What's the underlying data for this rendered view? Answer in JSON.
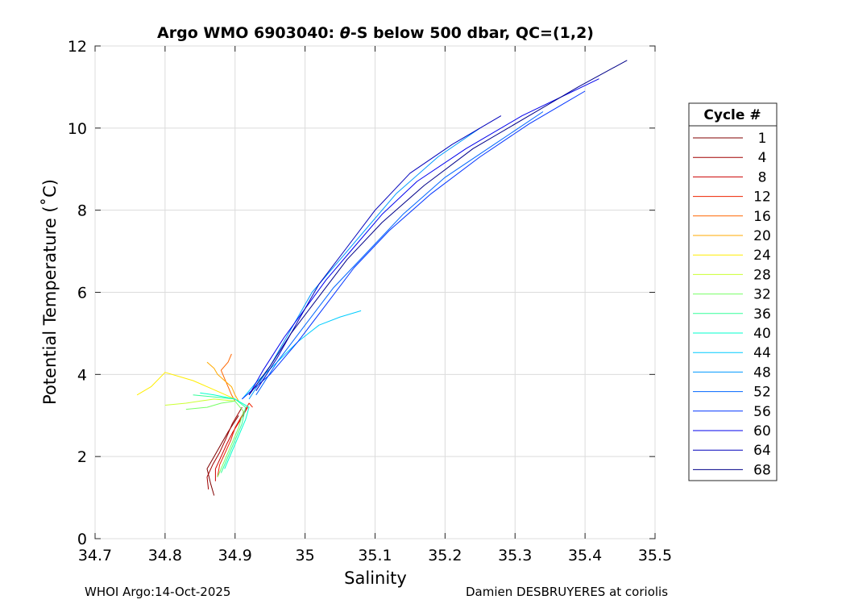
{
  "chart_data": {
    "type": "line",
    "title_main": "Argo WMO 6903040: ",
    "title_theta": "θ",
    "title_rest": "-S below 500 dbar,  QC=(1,2)",
    "xlabel": "Salinity",
    "ylabel": "Potential Temperature (˚C)",
    "xlim": [
      34.7,
      35.5
    ],
    "ylim": [
      0,
      12
    ],
    "xticks": [
      "34.7",
      "34.8",
      "34.9",
      "35",
      "35.1",
      "35.2",
      "35.3",
      "35.4",
      "35.5"
    ],
    "yticks": [
      "0",
      "2",
      "4",
      "6",
      "8",
      "10",
      "12"
    ],
    "grid": true,
    "legend": {
      "title": "Cycle #",
      "placement": "right",
      "entries": [
        {
          "label": "1",
          "color": "#800000"
        },
        {
          "label": "4",
          "color": "#a00000"
        },
        {
          "label": "8",
          "color": "#cc0000"
        },
        {
          "label": "12",
          "color": "#ee2200"
        },
        {
          "label": "16",
          "color": "#ff6600"
        },
        {
          "label": "20",
          "color": "#ffaa00"
        },
        {
          "label": "24",
          "color": "#ffee00"
        },
        {
          "label": "28",
          "color": "#ccff33"
        },
        {
          "label": "32",
          "color": "#77ff66"
        },
        {
          "label": "36",
          "color": "#33ff99"
        },
        {
          "label": "40",
          "color": "#00ffcc"
        },
        {
          "label": "44",
          "color": "#00ccff"
        },
        {
          "label": "48",
          "color": "#0099ff"
        },
        {
          "label": "52",
          "color": "#0066ff"
        },
        {
          "label": "56",
          "color": "#0033ff"
        },
        {
          "label": "60",
          "color": "#0000ee"
        },
        {
          "label": "64",
          "color": "#0000bb"
        },
        {
          "label": "68",
          "color": "#000088"
        }
      ]
    },
    "series": [
      {
        "color": "#800000",
        "x": [
          34.87,
          34.865,
          34.86,
          34.87,
          34.88,
          34.89,
          34.905
        ],
        "y": [
          1.05,
          1.35,
          1.7,
          2.0,
          2.3,
          2.6,
          3.0
        ]
      },
      {
        "color": "#a00000",
        "x": [
          34.862,
          34.86,
          34.868,
          34.878,
          34.886,
          34.896,
          34.91
        ],
        "y": [
          1.2,
          1.5,
          1.8,
          2.1,
          2.4,
          2.8,
          3.2
        ]
      },
      {
        "color": "#cc0000",
        "x": [
          34.872,
          34.872,
          34.88,
          34.888,
          34.897,
          34.908,
          34.918
        ],
        "y": [
          1.4,
          1.7,
          2.0,
          2.3,
          2.6,
          2.9,
          3.2
        ]
      },
      {
        "color": "#ee2200",
        "x": [
          34.875,
          34.878,
          34.886,
          34.894,
          34.9,
          34.91,
          34.92,
          34.925
        ],
        "y": [
          1.5,
          1.8,
          2.1,
          2.4,
          2.7,
          3.0,
          3.3,
          3.2
        ]
      },
      {
        "color": "#ff6600",
        "x": [
          34.9,
          34.895,
          34.89,
          34.885,
          34.88,
          34.89,
          34.895
        ],
        "y": [
          3.35,
          3.5,
          3.7,
          3.9,
          4.1,
          4.3,
          4.5
        ]
      },
      {
        "color": "#ffaa00",
        "x": [
          34.905,
          34.9,
          34.895,
          34.885,
          34.875,
          34.87,
          34.86
        ],
        "y": [
          3.35,
          3.5,
          3.7,
          3.85,
          4.0,
          4.15,
          4.3
        ]
      },
      {
        "color": "#ffee00",
        "x": [
          34.9,
          34.88,
          34.86,
          34.84,
          34.82,
          34.8,
          34.78,
          34.76
        ],
        "y": [
          3.4,
          3.55,
          3.7,
          3.85,
          3.95,
          4.05,
          3.7,
          3.5
        ]
      },
      {
        "color": "#ccff33",
        "x": [
          34.9,
          34.87,
          34.85,
          34.83,
          34.8
        ],
        "y": [
          3.35,
          3.4,
          3.35,
          3.3,
          3.25
        ]
      },
      {
        "color": "#77ff66",
        "x": [
          34.875,
          34.885,
          34.895,
          34.905,
          34.912,
          34.9,
          34.88,
          34.86,
          34.83
        ],
        "y": [
          1.5,
          1.9,
          2.3,
          2.7,
          3.1,
          3.35,
          3.3,
          3.2,
          3.15
        ]
      },
      {
        "color": "#33ff99",
        "x": [
          34.88,
          34.89,
          34.9,
          34.91,
          34.915,
          34.9,
          34.87,
          34.84
        ],
        "y": [
          1.6,
          2.0,
          2.4,
          2.8,
          3.2,
          3.4,
          3.45,
          3.5
        ]
      },
      {
        "color": "#00ffcc",
        "x": [
          34.885,
          34.895,
          34.905,
          34.915,
          34.92,
          34.9,
          34.87,
          34.85
        ],
        "y": [
          1.7,
          2.1,
          2.5,
          2.9,
          3.2,
          3.4,
          3.5,
          3.55
        ]
      },
      {
        "color": "#00ccff",
        "x": [
          34.91,
          34.93,
          34.96,
          34.99,
          35.02,
          35.05,
          35.08
        ],
        "y": [
          3.4,
          3.8,
          4.3,
          4.8,
          5.2,
          5.4,
          5.55
        ]
      },
      {
        "color": "#0099ff",
        "x": [
          34.92,
          34.95,
          34.98,
          35.01,
          35.05,
          35.09,
          35.13,
          35.19,
          35.25
        ],
        "y": [
          3.4,
          4.2,
          5.1,
          6.0,
          6.8,
          7.6,
          8.4,
          9.3,
          10.0
        ]
      },
      {
        "color": "#0066ff",
        "x": [
          34.93,
          34.96,
          35.0,
          35.04,
          35.09,
          35.14,
          35.2,
          35.27,
          35.34
        ],
        "y": [
          3.5,
          4.3,
          5.2,
          6.1,
          7.0,
          7.9,
          8.8,
          9.6,
          10.4
        ]
      },
      {
        "color": "#0033ff",
        "x": [
          34.91,
          34.95,
          34.99,
          35.03,
          35.07,
          35.12,
          35.18,
          35.25,
          35.32,
          35.4
        ],
        "y": [
          3.4,
          4.0,
          4.8,
          5.7,
          6.6,
          7.5,
          8.4,
          9.3,
          10.1,
          10.9
        ]
      },
      {
        "color": "#0000ee",
        "x": [
          34.92,
          34.94,
          34.97,
          35.0,
          35.03,
          35.07,
          35.11,
          35.16,
          35.23,
          35.31,
          35.42
        ],
        "y": [
          3.5,
          4.1,
          4.9,
          5.6,
          6.3,
          7.1,
          7.9,
          8.7,
          9.5,
          10.3,
          11.2
        ]
      },
      {
        "color": "#0000bb",
        "x": [
          34.93,
          34.96,
          34.99,
          35.02,
          35.06,
          35.1,
          35.15,
          35.21,
          35.28
        ],
        "y": [
          3.6,
          4.4,
          5.3,
          6.2,
          7.1,
          8.0,
          8.9,
          9.6,
          10.3
        ]
      },
      {
        "color": "#000088",
        "x": [
          34.92,
          34.95,
          34.98,
          35.02,
          35.06,
          35.11,
          35.17,
          35.24,
          35.32,
          35.39,
          35.46
        ],
        "y": [
          3.5,
          4.2,
          5.0,
          5.9,
          6.8,
          7.7,
          8.6,
          9.5,
          10.3,
          11.0,
          11.65
        ]
      }
    ]
  },
  "footer": {
    "left": "WHOI Argo:14-Oct-2025",
    "right": "Damien DESBRUYERES at coriolis"
  }
}
